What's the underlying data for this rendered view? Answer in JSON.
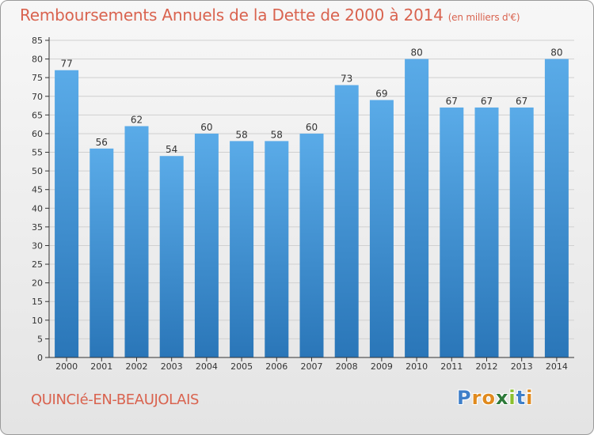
{
  "title": "Remboursements Annuels de la Dette de 2000 à 2014",
  "unit": "(en milliers d'€)",
  "commune": "QUINCIé-EN-BEAUJOLAIS",
  "logo": {
    "letters": [
      "P",
      "r",
      "o",
      "x",
      "i",
      "t",
      "i"
    ],
    "colors": [
      "#3f7fc9",
      "#e08a1e",
      "#e08a1e",
      "#2e7a3a",
      "#8bbf2e",
      "#3f7fc9",
      "#e08a1e"
    ]
  },
  "colors": {
    "bar_light": "#5aabe8",
    "bar_dark": "#2a76b8",
    "axis": "#333333",
    "grid": "#d0d0d0"
  },
  "chart_data": {
    "type": "bar",
    "title": "Remboursements Annuels de la Dette de 2000 à 2014",
    "xlabel": "",
    "ylabel": "",
    "categories": [
      "2000",
      "2001",
      "2002",
      "2003",
      "2004",
      "2005",
      "2006",
      "2007",
      "2008",
      "2009",
      "2010",
      "2011",
      "2012",
      "2013",
      "2014"
    ],
    "values": [
      77,
      56,
      62,
      54,
      60,
      58,
      58,
      60,
      73,
      69,
      80,
      67,
      67,
      67,
      80
    ],
    "ylim": [
      0,
      85
    ],
    "yticks": [
      0,
      5,
      10,
      15,
      20,
      25,
      30,
      35,
      40,
      45,
      50,
      55,
      60,
      65,
      70,
      75,
      80,
      85
    ],
    "grid": true
  }
}
